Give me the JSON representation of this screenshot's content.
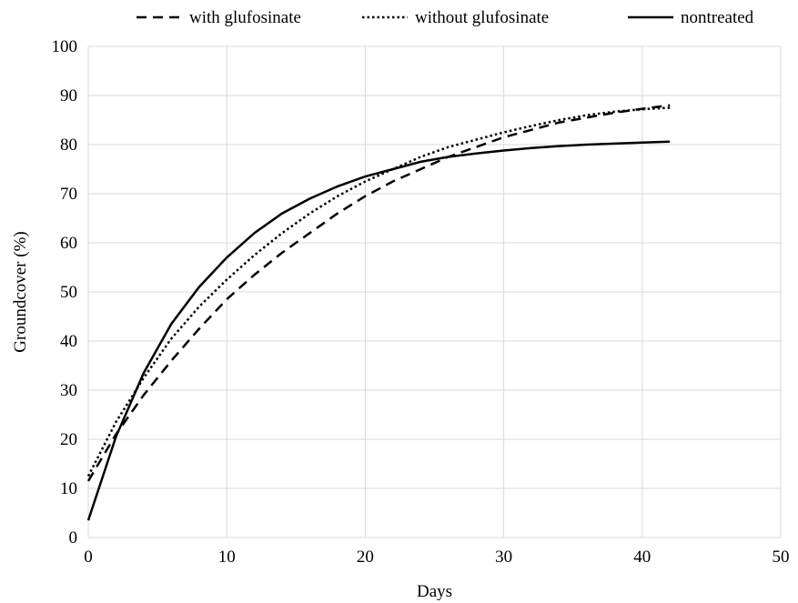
{
  "chart_data": {
    "type": "line",
    "title": "",
    "xlabel": "Days",
    "ylabel": "Groundcover (%)",
    "xlim": [
      0,
      50
    ],
    "ylim": [
      0,
      100
    ],
    "xticks": [
      0,
      10,
      20,
      30,
      40,
      50
    ],
    "yticks": [
      0,
      10,
      20,
      30,
      40,
      50,
      60,
      70,
      80,
      90,
      100
    ],
    "grid": true,
    "legend_position": "top",
    "series": [
      {
        "name": "with glufosinate",
        "line_style": "dashed",
        "color": "#000000",
        "x": [
          0,
          2,
          4,
          6,
          8,
          10,
          12,
          14,
          16,
          18,
          20,
          22,
          24,
          26,
          28,
          30,
          32,
          34,
          36,
          38,
          40,
          42
        ],
        "y": [
          11.5,
          21,
          29,
          36,
          42.5,
          48.5,
          53.5,
          58,
          62,
          66,
          69.5,
          72.5,
          75,
          77.5,
          79.5,
          81.5,
          83,
          84.5,
          85.5,
          86.5,
          87.3,
          88
        ]
      },
      {
        "name": "without glufosinate",
        "line_style": "dotted",
        "color": "#000000",
        "x": [
          0,
          2,
          4,
          6,
          8,
          10,
          12,
          14,
          16,
          18,
          20,
          22,
          24,
          26,
          28,
          30,
          32,
          34,
          36,
          38,
          40,
          42
        ],
        "y": [
          12.5,
          23.5,
          32.5,
          40.5,
          47,
          52.5,
          57.5,
          62,
          66,
          69.5,
          72.5,
          75,
          77.5,
          79.5,
          81,
          82.5,
          83.8,
          85,
          86,
          86.7,
          87.2,
          87.5
        ]
      },
      {
        "name": "nontreated",
        "line_style": "solid",
        "color": "#000000",
        "x": [
          0,
          2,
          4,
          6,
          8,
          10,
          12,
          14,
          16,
          18,
          20,
          22,
          24,
          26,
          28,
          30,
          32,
          34,
          36,
          38,
          40,
          42
        ],
        "y": [
          3.5,
          20.5,
          33.5,
          43.5,
          51,
          57,
          62,
          66,
          69,
          71.5,
          73.5,
          75,
          76.5,
          77.5,
          78.2,
          78.8,
          79.3,
          79.7,
          80,
          80.2,
          80.4,
          80.6
        ]
      }
    ]
  }
}
